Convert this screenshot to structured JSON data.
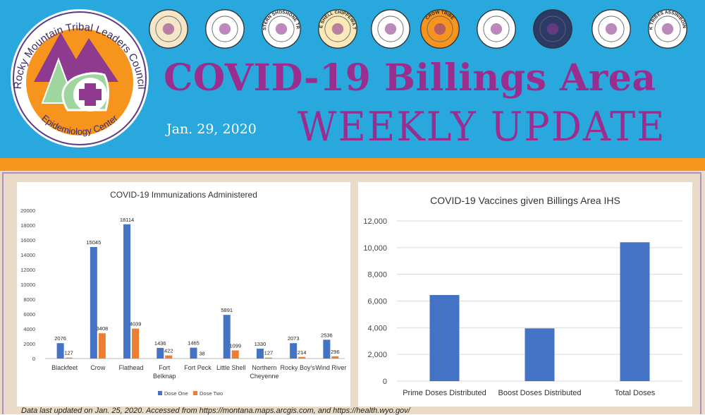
{
  "header": {
    "logo_ring_top": "Rocky Mountain Tribal Leaders Council",
    "logo_ring_bottom": "Epidemiology Center",
    "title_main": "COVID-19 Billings Area",
    "title_sub": "WEEKLY UPDATE",
    "date": "Jan. 29, 2020",
    "seals": [
      {
        "icon": "blackfeet-seal-icon",
        "color": "#f5e6c8"
      },
      {
        "icon": "northern-cheyenne-seal-icon",
        "color": "#ffffff"
      },
      {
        "icon": "eastern-shoshone-seal-icon",
        "color": "#ffffff"
      },
      {
        "icon": "little-shell-seal-icon",
        "color": "#fbe9b7"
      },
      {
        "icon": "feather-seal-icon",
        "color": "#ffffff"
      },
      {
        "icon": "crow-tribe-seal-icon",
        "color": "#f7941d"
      },
      {
        "icon": "northern-arapaho-seal-icon",
        "color": "#ffffff"
      },
      {
        "icon": "chippewa-cree-seal-icon",
        "color": "#2b3a67"
      },
      {
        "icon": "salish-kootenai-seal-icon",
        "color": "#ffffff"
      },
      {
        "icon": "fort-peck-seal-icon",
        "color": "#ffffff"
      }
    ],
    "seal_texts": {
      "eastern_shoshone": "EASTERN SHOSHONE TRIBE",
      "little_shell": "LITTLE SHELL CHIPPEWA TRIBE",
      "crow": "CROW TRIBE",
      "fort_peck": "FT. PECK TRIBES ASSINIBOINE SIOUX"
    }
  },
  "chart_data": [
    {
      "type": "bar",
      "title": "COVID-19 Immunizations Administered",
      "categories": [
        "Blackfeet",
        "Crow",
        "Flathead",
        "Fort Belknap",
        "Fort Peck",
        "Little Shell",
        "Northern Cheyenne",
        "Rocky Boy's",
        "Wind River"
      ],
      "category_lines": [
        [
          "Blackfeet"
        ],
        [
          "Crow"
        ],
        [
          "Flathead"
        ],
        [
          "Fort",
          "Belknap"
        ],
        [
          "Fort Peck"
        ],
        [
          "Little Shell"
        ],
        [
          "Northern",
          "Cheyenne"
        ],
        [
          "Rocky Boy's"
        ],
        [
          "Wind River"
        ]
      ],
      "series": [
        {
          "name": "Dose One",
          "color": "#4472c4",
          "values": [
            2076,
            15045,
            18114,
            1436,
            1465,
            5891,
            1330,
            2073,
            2536
          ]
        },
        {
          "name": "Dose Two",
          "color": "#ed7d31",
          "values": [
            127,
            3408,
            4039,
            422,
            38,
            1099,
            127,
            214,
            296
          ]
        }
      ],
      "ylim": [
        0,
        20000
      ],
      "yticks": [
        "0",
        "2000",
        "4000",
        "6000",
        "8000",
        "10000",
        "12000",
        "14000",
        "16000",
        "18000",
        "20000"
      ],
      "grid": false,
      "legend": "bottom"
    },
    {
      "type": "bar",
      "title": "COVID-19 Vaccines given Billings Area IHS",
      "categories": [
        "Prime Doses Distributed",
        "Boost Doses Distributed",
        "Total Doses"
      ],
      "series": [
        {
          "color": "#4472c4",
          "values": [
            6450,
            3950,
            10400
          ]
        }
      ],
      "ylim": [
        0,
        12000
      ],
      "yticks": [
        "0",
        "2,000",
        "4,000",
        "6,000",
        "8,000",
        "10,000",
        "12,000"
      ],
      "grid": true
    }
  ],
  "footer": {
    "note": "Data last updated on Jan. 25, 2020. Accessed from https://montana.maps.arcgis.com, and https://health.wyo.gov/"
  }
}
